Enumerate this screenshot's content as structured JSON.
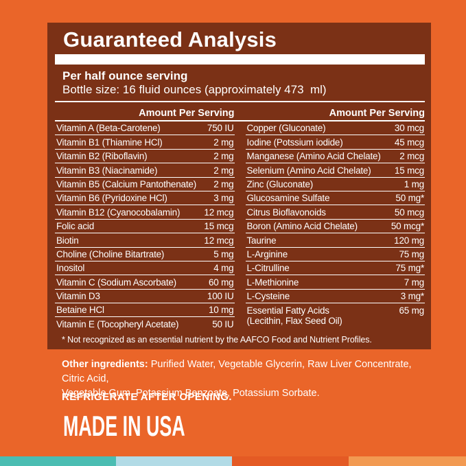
{
  "colors": {
    "background": "#EA6529",
    "panel": "#7B3116",
    "ink": "#FFFFFF",
    "strip": [
      "#4BBDB2",
      "#B2DBE6",
      "#E45A24",
      "#F29A52"
    ]
  },
  "panel": {
    "title": "Guaranteed Analysis",
    "serving_line": "Per half ounce serving",
    "bottle_line": "Bottle size: 16 fluid ounces (approximately 473  ml)",
    "footnote": "* Not recognized as an essential nutrient by the AAFCO Food and Nutrient Profiles."
  },
  "table": {
    "amount_header": "Amount Per Serving",
    "left_rows": [
      {
        "name": "Vitamin A (Beta-Carotene)",
        "amount": "750 IU"
      },
      {
        "name": "Vitamin B1 (Thiamine HCl)",
        "amount": "2 mg"
      },
      {
        "name": "Vitamin B2 (Riboflavin)",
        "amount": "2 mg"
      },
      {
        "name": "Vitamin B3 (Niacinamide)",
        "amount": "2 mg"
      },
      {
        "name": "Vitamin B5 (Calcium Pantothenate)",
        "amount": "2 mg"
      },
      {
        "name": "Vitamin B6 (Pyridoxine HCl)",
        "amount": "3 mg"
      },
      {
        "name": "Vitamin B12 (Cyanocobalamin)",
        "amount": "12 mcg"
      },
      {
        "name": "Folic acid",
        "amount": "15 mcg"
      },
      {
        "name": "Biotin",
        "amount": "12 mcg"
      },
      {
        "name": "Choline (Choline Bitartrate)",
        "amount": "5 mg"
      },
      {
        "name": "Inositol",
        "amount": "4 mg"
      },
      {
        "name": "Vitamin C (Sodium Ascorbate)",
        "amount": "60 mg"
      },
      {
        "name": "Vitamin D3",
        "amount": "100 IU"
      },
      {
        "name": "Betaine HCl",
        "amount": "10 mg"
      },
      {
        "name": "Vitamin E (Tocopheryl Acetate)",
        "amount": "50 IU"
      }
    ],
    "right_rows": [
      {
        "name": "Copper (Gluconate)",
        "amount": "30 mcg"
      },
      {
        "name": "Iodine (Potssium iodide)",
        "amount": "45 mcg"
      },
      {
        "name": "Manganese (Amino Acid Chelate)",
        "amount": "2 mcg"
      },
      {
        "name": "Selenium (Amino Acid Chelate)",
        "amount": "15 mcg"
      },
      {
        "name": "Zinc (Gluconate)",
        "amount": "1 mg"
      },
      {
        "name": "Glucosamine Sulfate",
        "amount": "50 mg*"
      },
      {
        "name": "Citrus Bioflavonoids",
        "amount": "50 mcg"
      },
      {
        "name": "Boron (Amino Acid Chelate)",
        "amount": "50 mcg*"
      },
      {
        "name": "Taurine",
        "amount": "120 mg"
      },
      {
        "name": "L-Arginine",
        "amount": "75 mg"
      },
      {
        "name": "L-Citrulline",
        "amount": "75 mg*"
      },
      {
        "name": "L-Methionine",
        "amount": "7 mg"
      },
      {
        "name": "L-Cysteine",
        "amount": "3 mg*"
      },
      {
        "name": "Essential Fatty Acids",
        "name2": "(Lecithin, Flax Seed Oil)",
        "amount": "65 mg"
      }
    ]
  },
  "lower": {
    "other_ingredients": {
      "label": "Other ingredients:",
      "line1_rest": " Purified Water, Vegetable Glycerin, Raw Liver Concentrate, Citric Acid,",
      "line2": "Vegetable Gum, Potassium Benzoate, Potassium Sorbate."
    },
    "refrigerate": "REFRIGERATE AFTER OPENING.",
    "made_in": "MADE IN USA"
  }
}
